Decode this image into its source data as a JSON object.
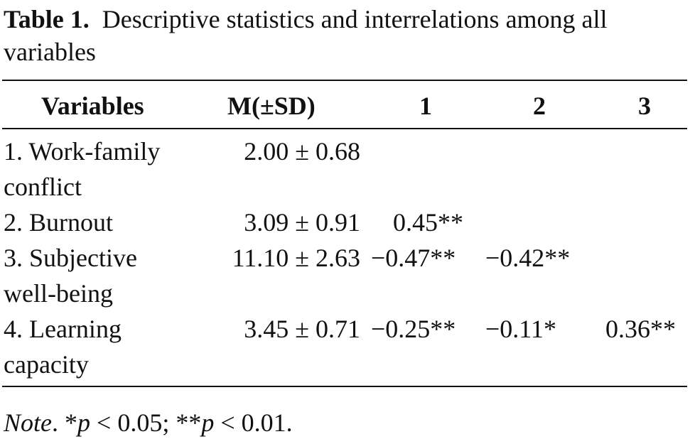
{
  "caption": {
    "label": "Table 1.",
    "text_line1": "Descriptive statistics and interrelations among all",
    "text_line2": "variables"
  },
  "table": {
    "headers": [
      "Variables",
      "M(±SD)",
      "1",
      "2",
      "3"
    ],
    "rows": [
      {
        "variable_line1": "1. Work-family",
        "variable_line2": "conflict",
        "msd": "2.00 ± 0.68",
        "c1": "",
        "c2": "",
        "c3": ""
      },
      {
        "variable_line1": "2. Burnout",
        "variable_line2": "",
        "msd": "3.09 ± 0.91",
        "c1": "0.45**",
        "c2": "",
        "c3": ""
      },
      {
        "variable_line1": "3. Subjective",
        "variable_line2": "well-being",
        "msd": "11.10 ± 2.63",
        "c1": "−0.47**",
        "c2": "−0.42**",
        "c3": ""
      },
      {
        "variable_line1": "4. Learning",
        "variable_line2": "capacity",
        "msd": "3.45 ± 0.71",
        "c1": "−0.25**",
        "c2": "−0.11*",
        "c3": "0.36**"
      }
    ]
  },
  "note": {
    "label": "Note",
    "text": ". *p < 0.05; **p < 0.01."
  }
}
